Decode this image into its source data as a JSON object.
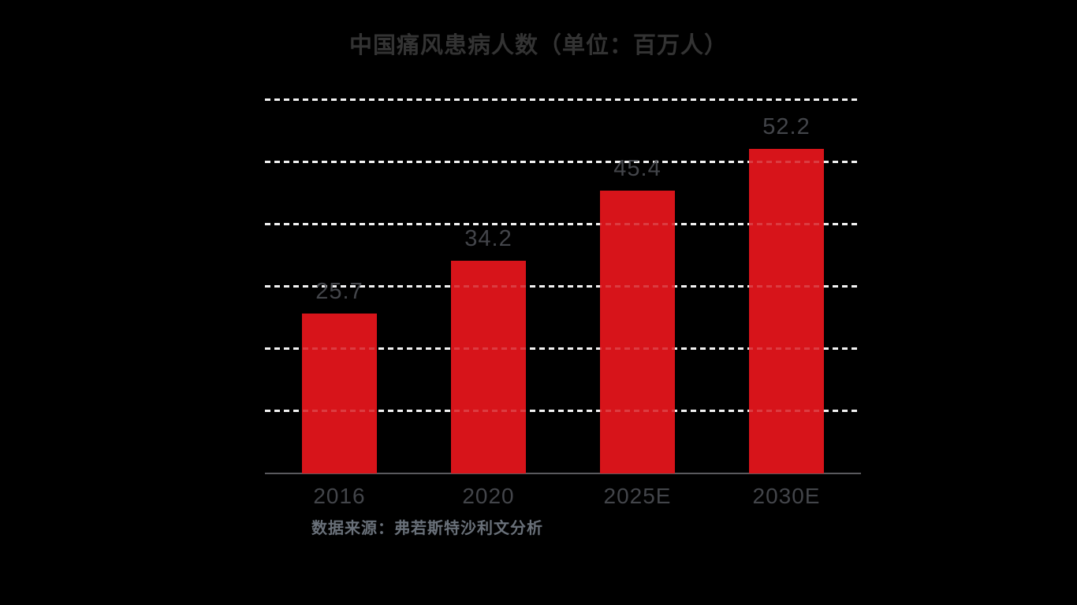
{
  "chart_data": {
    "type": "bar",
    "title": "中国痛风患病人数（单位：百万人）",
    "categories": [
      "2016",
      "2020",
      "2025E",
      "2030E"
    ],
    "values": [
      25.7,
      34.2,
      45.4,
      52.2
    ],
    "value_labels": [
      "25.7",
      "34.2",
      "45.4",
      "52.2"
    ],
    "xlabel": "",
    "ylabel": "",
    "ylim": [
      0,
      60
    ],
    "gridline_step": 10,
    "grid": "horizontal dashed white lines, no y-axis tick labels",
    "legend_position": "none",
    "source_note": "数据来源：弗若斯特沙利文分析"
  },
  "colors": {
    "background": "#000000",
    "bar": "#d7141a",
    "gridline": "#f2f2f2",
    "axis_line": "#5a5a5e",
    "title_text": "#333333",
    "label_text": "#43454a",
    "source_text": "#697079"
  }
}
